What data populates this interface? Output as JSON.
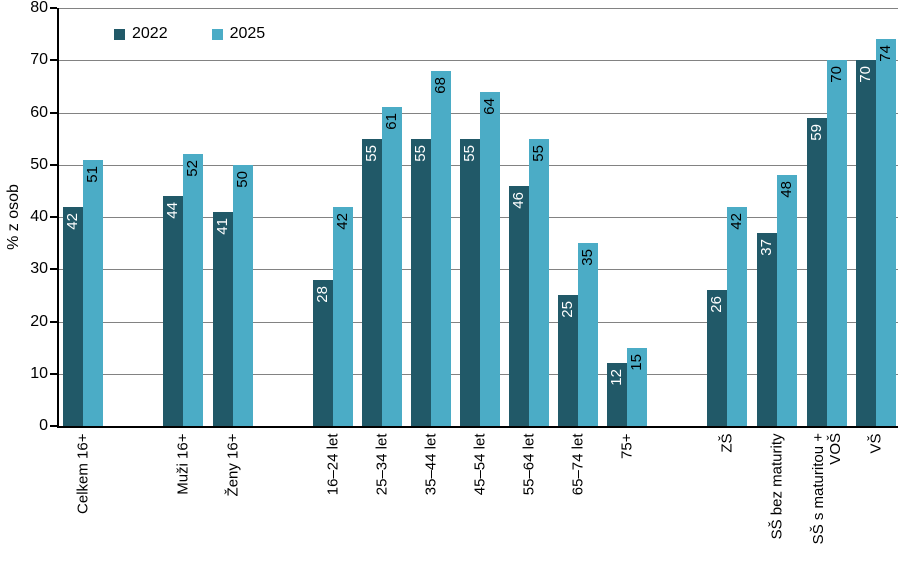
{
  "chart_data": {
    "type": "bar",
    "title": "",
    "ylabel": "% z osob",
    "xlabel": "",
    "ylim": [
      0,
      80
    ],
    "yticks": [
      0,
      10,
      20,
      30,
      40,
      50,
      60,
      70,
      80
    ],
    "grid": true,
    "legend_position": "top-inside-left",
    "categories": [
      "Celkem 16+",
      "Muži 16+",
      "Ženy 16+",
      "16–24 let",
      "25–34 let",
      "35–44 let",
      "45–54 let",
      "55–64 let",
      "65–74 let",
      "75+",
      "ZŠ",
      "SŠ bez maturity",
      "SŠ s maturitou +\nVOŠ",
      "VŠ"
    ],
    "category_groups": [
      [
        0
      ],
      [
        1,
        2
      ],
      [
        3,
        4,
        5,
        6,
        7,
        8,
        9
      ],
      [
        10,
        11,
        12,
        13
      ]
    ],
    "series": [
      {
        "name": "2022",
        "color": "#215968",
        "label_color": "#ffffff",
        "values": [
          42,
          44,
          41,
          28,
          55,
          55,
          55,
          46,
          25,
          12,
          26,
          37,
          59,
          70
        ]
      },
      {
        "name": "2025",
        "color": "#4bacc6",
        "label_color": "#000000",
        "values": [
          51,
          52,
          50,
          42,
          61,
          68,
          64,
          55,
          35,
          15,
          42,
          48,
          70,
          74
        ]
      }
    ],
    "colors": {
      "gridline": "#828282",
      "axis": "#000000",
      "text": "#000000",
      "background": "#ffffff"
    }
  }
}
